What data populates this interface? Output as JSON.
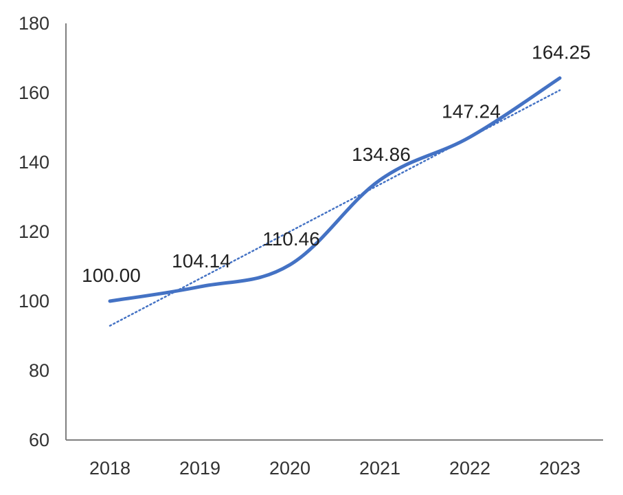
{
  "chart_data": {
    "type": "line",
    "title": "",
    "xlabel": "",
    "ylabel": "",
    "categories": [
      "2018",
      "2019",
      "2020",
      "2021",
      "2022",
      "2023"
    ],
    "series": [
      {
        "values": [
          100.0,
          104.14,
          110.46,
          134.86,
          147.24,
          164.25
        ],
        "labels": [
          "100.00",
          "104.14",
          "110.46",
          "134.86",
          "147.24",
          "164.25"
        ],
        "color": "#4472C4",
        "smooth": true,
        "show_data_labels": true
      }
    ],
    "trendline": {
      "type": "linear",
      "style": "dotted",
      "color": "#4472C4"
    },
    "ylim": [
      60,
      180
    ],
    "yticks": [
      60,
      80,
      100,
      120,
      140,
      160,
      180
    ],
    "grid": false,
    "legend": "none"
  }
}
